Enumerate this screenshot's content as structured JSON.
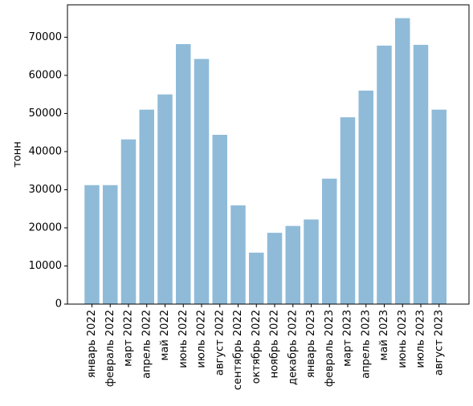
{
  "chart_data": {
    "type": "bar",
    "title": "",
    "xlabel": "",
    "ylabel": "тонн",
    "ylim": [
      0,
      78500
    ],
    "yticks": [
      0,
      10000,
      20000,
      30000,
      40000,
      50000,
      60000,
      70000
    ],
    "grid": false,
    "bar_color": "#8fbbd9",
    "categories": [
      "январь 2022",
      "февраль 2022",
      "март 2022",
      "апрель 2022",
      "май 2022",
      "июнь 2022",
      "июль 2022",
      "август 2022",
      "сентябрь 2022",
      "октябрь 2022",
      "ноябрь 2022",
      "декабрь 2022",
      "январь 2023",
      "февраль 2023",
      "март 2023",
      "апрель 2023",
      "май 2023",
      "июнь 2023",
      "июль 2023",
      "август 2023"
    ],
    "values": [
      31200,
      31200,
      43200,
      51000,
      55000,
      68200,
      64300,
      44400,
      25900,
      13500,
      18700,
      20500,
      22200,
      32900,
      49000,
      56000,
      67800,
      75000,
      68000,
      51000
    ]
  }
}
